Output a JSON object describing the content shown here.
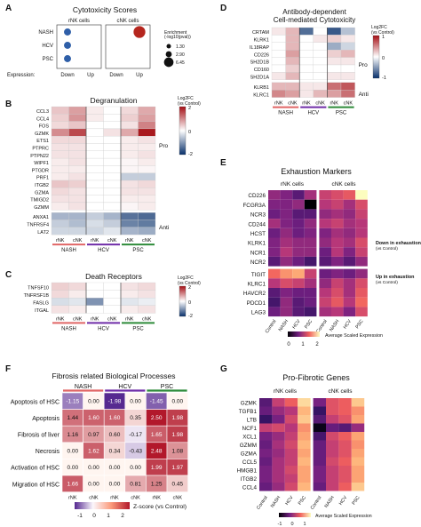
{
  "chart_data": [
    {
      "panel": "A",
      "type": "scatter",
      "title": "Cytotoxicity Scores",
      "group_labels": [
        "rNK cells",
        "cNK cells"
      ],
      "rows": [
        "NASH",
        "HCV",
        "PSC"
      ],
      "x_label": "Expression:",
      "x_ticks": [
        "Down",
        "Up"
      ],
      "legend_title": "Enrichment (-log10(pval))",
      "legend_values": [
        "1.30",
        "2.90",
        "6.45"
      ],
      "points": [
        {
          "group": "rNK cells",
          "row": "NASH",
          "col": "Down",
          "size": 2.9,
          "color": "#2f5fa8"
        },
        {
          "group": "rNK cells",
          "row": "HCV",
          "col": "Down",
          "size": 2.9,
          "color": "#2f5fa8"
        },
        {
          "group": "rNK cells",
          "row": "PSC",
          "col": "Down",
          "size": 2.9,
          "color": "#2f5fa8"
        },
        {
          "group": "cNK cells",
          "row": "NASH",
          "col": "Up",
          "size": 6.45,
          "color": "#b5261e"
        }
      ]
    },
    {
      "panel": "B",
      "type": "heatmap",
      "title": "Degranulation",
      "genes": [
        "CCL3",
        "CCL4",
        "FOS",
        "GZMK",
        "ETS1",
        "PTPRC",
        "PTPN22",
        "WIPF1",
        "PTGDR",
        "PRF1",
        "ITGB2",
        "GZMA",
        "TMIGD2",
        "GZMM",
        "ANXA1",
        "TNFRSF4",
        "LAT2"
      ],
      "columns": [
        "rNK",
        "cNK",
        "rNK",
        "cNK",
        "rNK",
        "cNK"
      ],
      "groups": [
        "NASH",
        "HCV",
        "PSC"
      ],
      "side_labels": [
        "Pro",
        "Anti"
      ],
      "legend_title": "Log2FC (vs Control)",
      "legend_ticks": [
        "2",
        "0",
        "-2"
      ],
      "values": [
        [
          0.6,
          1.0,
          0.2,
          0,
          0.4,
          0.9
        ],
        [
          0.5,
          1.1,
          0.2,
          0,
          0.5,
          1.0
        ],
        [
          0.4,
          0.6,
          0,
          0,
          0.3,
          1.3
        ],
        [
          1.2,
          1.9,
          0,
          0.3,
          0.9,
          2.4
        ],
        [
          0.4,
          0.4,
          0,
          0,
          0.2,
          0.3
        ],
        [
          0.3,
          0.3,
          0,
          0,
          0.2,
          0.2
        ],
        [
          0.3,
          0.3,
          0,
          0,
          0.2,
          0.3
        ],
        [
          0.2,
          0.3,
          0,
          0,
          0.1,
          0.2
        ],
        [
          0.2,
          0.2,
          0,
          0,
          0.1,
          0.1
        ],
        [
          0.2,
          0.3,
          0,
          0,
          -0.6,
          -0.6
        ],
        [
          0.6,
          0.5,
          0,
          0,
          0.3,
          0.4
        ],
        [
          0.4,
          0.3,
          0,
          0,
          0.3,
          0.3
        ],
        [
          0.3,
          0.3,
          0,
          0,
          0.2,
          0.2
        ],
        [
          0.2,
          0.3,
          0,
          0,
          0.1,
          0.2
        ],
        [
          -0.9,
          -0.9,
          -0.6,
          -0.9,
          -1.7,
          -1.8
        ],
        [
          -0.6,
          -0.8,
          -0.4,
          -0.6,
          -1.5,
          -1.6
        ],
        [
          -0.5,
          -0.5,
          -0.5,
          -0.3,
          -0.9,
          -1.0
        ]
      ]
    },
    {
      "panel": "C",
      "type": "heatmap",
      "title": "Death Receptors",
      "genes": [
        "TNFSF10",
        "TNFRSF1B",
        "FASLG",
        "ITGAL"
      ],
      "columns": [
        "rNK",
        "cNK",
        "rNK",
        "cNK",
        "rNK",
        "cNK"
      ],
      "groups": [
        "NASH",
        "HCV",
        "PSC"
      ],
      "legend_title": "Log2FC (vs Control)",
      "legend_ticks": [
        "2",
        "0",
        "-2"
      ],
      "values": [
        [
          0.5,
          0.4,
          0,
          0,
          0.3,
          0.4
        ],
        [
          0.4,
          0.2,
          0,
          0,
          0.2,
          0.3
        ],
        [
          -0.4,
          -0.3,
          -1.3,
          0,
          -0.3,
          -0.2
        ],
        [
          0.3,
          0.2,
          0,
          0,
          0.2,
          0.3
        ]
      ]
    },
    {
      "panel": "D",
      "type": "heatmap",
      "title": "Antibody-dependent Cell-mediated Cytotoxicity",
      "genes": [
        "CRTAM",
        "KLRK1",
        "IL18RAP",
        "CD226",
        "SH2D1B",
        "CD160",
        "SH2D1A",
        "KLRB1",
        "KLRC1"
      ],
      "columns": [
        "rNK",
        "cNK",
        "rNK",
        "cNK",
        "rNK",
        "cNK"
      ],
      "groups": [
        "NASH",
        "HCV",
        "PSC"
      ],
      "side_labels": [
        "Pro",
        "Anti"
      ],
      "legend_title": "Log2FC (vs Control)",
      "legend_ticks": [
        "1",
        "0",
        "-1"
      ],
      "values": [
        [
          0.1,
          0.3,
          -0.7,
          0,
          -0.8,
          -0.3
        ],
        [
          0,
          0.3,
          0,
          0.1,
          0.2,
          0.1
        ],
        [
          0,
          0.3,
          0,
          0,
          -0.4,
          -0.2
        ],
        [
          0,
          0.4,
          0,
          0,
          0.2,
          0.3
        ],
        [
          0,
          0.3,
          0,
          0,
          0.1,
          0.1
        ],
        [
          0,
          0.2,
          0,
          0,
          0,
          0
        ],
        [
          0.1,
          0.3,
          0,
          0,
          0.1,
          0.1
        ],
        [
          0.3,
          0.3,
          0.1,
          0.1,
          0.6,
          0.7
        ],
        [
          0.5,
          0.4,
          0.1,
          0.3,
          0.4,
          0.6
        ]
      ]
    },
    {
      "panel": "E",
      "type": "heatmap",
      "title": "Exhaustion Markers",
      "group_labels": [
        "rNK cells",
        "cNK cells"
      ],
      "genes": [
        "CD226",
        "FCGR3A",
        "NCR3",
        "CD244",
        "HCST",
        "KLRK1",
        "NCR1",
        "NCR2",
        "TIGIT",
        "KLRC1",
        "HAVCR2",
        "PDCD1",
        "LAG3"
      ],
      "columns": [
        "Control",
        "NASH",
        "HCV",
        "PSC",
        "Control",
        "NASH",
        "HCV",
        "PSC"
      ],
      "side_labels": [
        "Down in exhaustion",
        "Up in exhaustion"
      ],
      "side_sublabel": "(vs Control)",
      "legend_title": "Average Scaled Expression",
      "legend_ticks": [
        "0",
        "1",
        "2"
      ],
      "values": [
        [
          0.9,
          0.8,
          0.6,
          1.0,
          1.2,
          1.3,
          1.4,
          2.2
        ],
        [
          0.8,
          0.8,
          0.9,
          0.0,
          1.1,
          1.2,
          1.0,
          1.3
        ],
        [
          0.7,
          0.8,
          0.6,
          0.6,
          0.9,
          1.0,
          0.9,
          1.2
        ],
        [
          1.0,
          0.8,
          0.7,
          0.9,
          1.1,
          1.2,
          1.0,
          1.1
        ],
        [
          0.7,
          0.9,
          0.7,
          0.8,
          0.8,
          1.0,
          0.9,
          1.1
        ],
        [
          0.8,
          1.0,
          0.9,
          0.9,
          0.9,
          1.1,
          1.0,
          1.3
        ],
        [
          0.8,
          1.1,
          0.9,
          0.9,
          0.7,
          1.1,
          0.8,
          1.2
        ],
        [
          0.6,
          0.9,
          0.7,
          0.5,
          0.6,
          0.8,
          0.6,
          0.9
        ],
        [
          1.5,
          1.7,
          1.8,
          1.2,
          0.7,
          0.8,
          0.7,
          0.9
        ],
        [
          1.1,
          1.3,
          1.2,
          1.0,
          0.9,
          1.2,
          1.0,
          1.3
        ],
        [
          0.6,
          0.8,
          0.7,
          0.7,
          1.1,
          1.3,
          1.0,
          1.4
        ],
        [
          0.5,
          0.9,
          0.6,
          0.7,
          1.2,
          1.4,
          1.1,
          1.5
        ],
        [
          0.7,
          0.9,
          0.6,
          0.5,
          1.0,
          1.1,
          0.8,
          1.3
        ]
      ]
    },
    {
      "panel": "F",
      "type": "heatmap",
      "title": "Fibrosis related Biological Processes",
      "groups": [
        "NASH",
        "HCV",
        "PSC"
      ],
      "columns": [
        "rNK",
        "cNK",
        "rNK",
        "cNK",
        "rNK",
        "cNK"
      ],
      "rows": [
        "Apoptosis of HSC",
        "Apoptosis",
        "Fibrosis of liver",
        "Necrosis",
        "Activation of HSC",
        "Migration of HSC"
      ],
      "legend_title": "Z-score (vs Control)",
      "legend_ticks": [
        "-1",
        "0",
        "1",
        "2"
      ],
      "values": [
        [
          "-1.15",
          "0.00",
          "-1.98",
          "0.00",
          "-1.45",
          "0.00"
        ],
        [
          "1.44",
          "1.60",
          "1.60",
          "0.35",
          "2.50",
          "1.98"
        ],
        [
          "1.16",
          "0.97",
          "0.60",
          "-0.17",
          "1.65",
          "1.98"
        ],
        [
          "0.00",
          "1.62",
          "0.34",
          "-0.43",
          "2.48",
          "1.08"
        ],
        [
          "0.00",
          "0.00",
          "0.00",
          "0.00",
          "1.99",
          "1.97"
        ],
        [
          "1.66",
          "0.00",
          "0.00",
          "0.81",
          "1.25",
          "0.45"
        ]
      ]
    },
    {
      "panel": "G",
      "type": "heatmap",
      "title": "Pro-Fibrotic Genes",
      "group_labels": [
        "rNK cells",
        "cNK cells"
      ],
      "genes": [
        "GZMK",
        "TGFB1",
        "LTB",
        "NCF1",
        "XCL1",
        "GZMM",
        "GZMA",
        "CCL5",
        "HMGB1",
        "ITGB2",
        "CCL4"
      ],
      "columns": [
        "Control",
        "NASH",
        "HCV",
        "PSC",
        "Control",
        "NASH",
        "HCV",
        "PSC"
      ],
      "legend_title": "Average Scaled Expression",
      "legend_ticks": [
        "-1",
        "0",
        "1"
      ],
      "values": [
        [
          -0.4,
          0.3,
          0.6,
          1.3,
          -0.2,
          0.5,
          0.6,
          1.2
        ],
        [
          -0.3,
          0.0,
          0.2,
          1.1,
          -0.6,
          0.5,
          0.6,
          0.9
        ],
        [
          -0.6,
          -0.2,
          0.4,
          1.2,
          -0.4,
          0.3,
          0.5,
          1.0
        ],
        [
          0.3,
          0.4,
          0.2,
          0.9,
          -1.0,
          -0.3,
          -0.4,
          0.0
        ],
        [
          -0.2,
          0.0,
          0.3,
          1.0,
          -0.5,
          0.4,
          0.6,
          1.0
        ],
        [
          -0.3,
          0.1,
          0.4,
          1.1,
          -0.3,
          0.3,
          0.5,
          0.9
        ],
        [
          -0.2,
          0.0,
          0.3,
          1.0,
          -0.3,
          0.3,
          0.5,
          1.0
        ],
        [
          -0.3,
          0.1,
          0.3,
          1.1,
          -0.3,
          0.4,
          0.6,
          1.1
        ],
        [
          -0.2,
          0.1,
          0.4,
          1.0,
          -0.2,
          0.3,
          0.5,
          1.0
        ],
        [
          -0.2,
          0.1,
          0.3,
          1.0,
          -0.2,
          0.3,
          0.5,
          1.0
        ],
        [
          -0.3,
          0.0,
          0.4,
          1.1,
          -0.3,
          0.3,
          0.6,
          1.2
        ]
      ]
    }
  ],
  "panel_letters": [
    "A",
    "B",
    "C",
    "D",
    "E",
    "F",
    "G"
  ],
  "group_colors": {
    "NASH": "#e06666",
    "HCV": "#6f2da8",
    "PSC": "#2e8b3a"
  }
}
